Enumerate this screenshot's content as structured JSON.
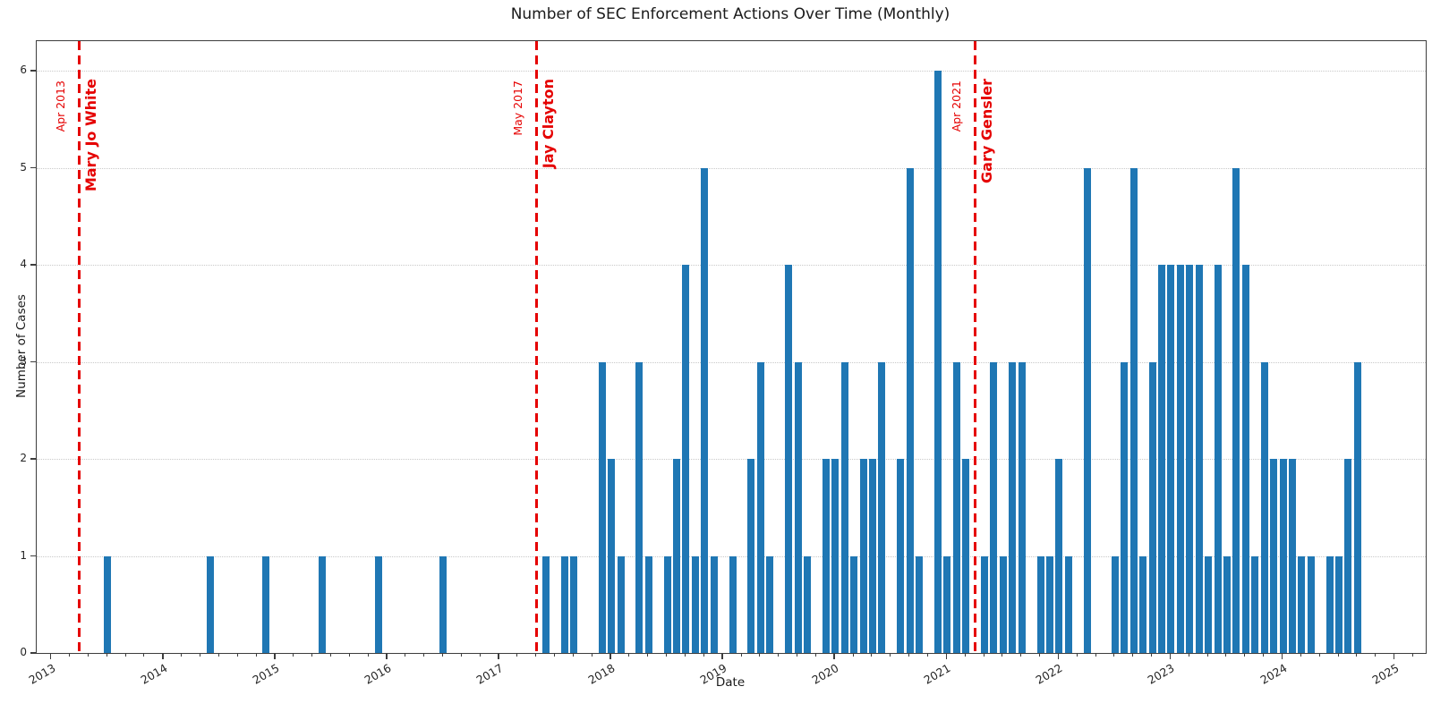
{
  "title": "Number of SEC Enforcement Actions Over Time (Monthly)",
  "x_axis_label": "Date",
  "y_axis_label": "Number of Cases",
  "chart_data": {
    "type": "bar",
    "title": "Number of SEC Enforcement Actions Over Time (Monthly)",
    "xlabel": "Date",
    "ylabel": "Number of Cases",
    "bar_color": "#1f77b4",
    "annotation_color": "#e50000",
    "grid": "horizontal-dotted",
    "legend": "none",
    "ylim": [
      0,
      6.31
    ],
    "yticks": [
      0,
      1,
      2,
      3,
      4,
      5,
      6
    ],
    "xticks_years": [
      2013,
      2014,
      2015,
      2016,
      2017,
      2018,
      2019,
      2020,
      2021,
      2022,
      2023,
      2024,
      2025
    ],
    "x_unit": "month",
    "points": [
      [
        "2013-07",
        1
      ],
      [
        "2014-06",
        1
      ],
      [
        "2014-12",
        1
      ],
      [
        "2015-06",
        1
      ],
      [
        "2015-12",
        1
      ],
      [
        "2016-07",
        1
      ],
      [
        "2017-06",
        1
      ],
      [
        "2017-08",
        1
      ],
      [
        "2017-09",
        1
      ],
      [
        "2017-12",
        3
      ],
      [
        "2018-01",
        2
      ],
      [
        "2018-02",
        1
      ],
      [
        "2018-04",
        3
      ],
      [
        "2018-05",
        1
      ],
      [
        "2018-07",
        1
      ],
      [
        "2018-08",
        2
      ],
      [
        "2018-09",
        4
      ],
      [
        "2018-10",
        1
      ],
      [
        "2018-11",
        5
      ],
      [
        "2018-12",
        1
      ],
      [
        "2019-02",
        1
      ],
      [
        "2019-04",
        2
      ],
      [
        "2019-05",
        3
      ],
      [
        "2019-06",
        1
      ],
      [
        "2019-08",
        4
      ],
      [
        "2019-09",
        3
      ],
      [
        "2019-10",
        1
      ],
      [
        "2019-12",
        2
      ],
      [
        "2020-01",
        2
      ],
      [
        "2020-02",
        3
      ],
      [
        "2020-03",
        1
      ],
      [
        "2020-04",
        2
      ],
      [
        "2020-05",
        2
      ],
      [
        "2020-06",
        3
      ],
      [
        "2020-08",
        2
      ],
      [
        "2020-09",
        5
      ],
      [
        "2020-10",
        1
      ],
      [
        "2020-12",
        6
      ],
      [
        "2021-01",
        1
      ],
      [
        "2021-02",
        3
      ],
      [
        "2021-03",
        2
      ],
      [
        "2021-05",
        1
      ],
      [
        "2021-06",
        3
      ],
      [
        "2021-07",
        1
      ],
      [
        "2021-08",
        3
      ],
      [
        "2021-09",
        3
      ],
      [
        "2021-11",
        1
      ],
      [
        "2021-12",
        1
      ],
      [
        "2022-01",
        2
      ],
      [
        "2022-02",
        1
      ],
      [
        "2022-04",
        5
      ],
      [
        "2022-07",
        1
      ],
      [
        "2022-08",
        3
      ],
      [
        "2022-09",
        5
      ],
      [
        "2022-10",
        1
      ],
      [
        "2022-11",
        3
      ],
      [
        "2022-12",
        4
      ],
      [
        "2023-01",
        4
      ],
      [
        "2023-02",
        4
      ],
      [
        "2023-03",
        4
      ],
      [
        "2023-04",
        4
      ],
      [
        "2023-05",
        1
      ],
      [
        "2023-06",
        4
      ],
      [
        "2023-07",
        1
      ],
      [
        "2023-08",
        5
      ],
      [
        "2023-09",
        4
      ],
      [
        "2023-10",
        1
      ],
      [
        "2023-11",
        3
      ],
      [
        "2023-12",
        2
      ],
      [
        "2024-01",
        2
      ],
      [
        "2024-02",
        2
      ],
      [
        "2024-03",
        1
      ],
      [
        "2024-04",
        1
      ],
      [
        "2024-06",
        1
      ],
      [
        "2024-07",
        1
      ],
      [
        "2024-08",
        2
      ],
      [
        "2024-09",
        3
      ]
    ],
    "annotations": [
      {
        "month": "2013-04",
        "date_label": "Apr 2013",
        "name": "Mary Jo White"
      },
      {
        "month": "2017-05",
        "date_label": "May 2017",
        "name": "Jay Clayton"
      },
      {
        "month": "2021-04",
        "date_label": "Apr 2021",
        "name": "Gary Gensler"
      }
    ]
  }
}
